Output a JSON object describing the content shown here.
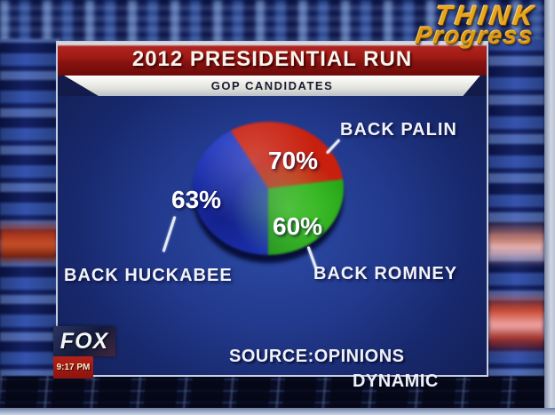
{
  "watermark": {
    "line1": "THINK",
    "line2": "Progress",
    "color": "#e8a51e"
  },
  "banner": {
    "title": "2012 PRESIDENTIAL RUN",
    "subtitle": "GOP CANDIDATES"
  },
  "chart_data": {
    "type": "pie",
    "title": "2012 PRESIDENTIAL RUN",
    "subtitle": "GOP CANDIDATES",
    "slices": [
      {
        "label": "BACK PALIN",
        "value_pct": 70,
        "display": "70%",
        "color": "#c81f0e",
        "position": "top"
      },
      {
        "label": "BACK ROMNEY",
        "value_pct": 60,
        "display": "60%",
        "color": "#28a818",
        "position": "bottom-right"
      },
      {
        "label": "BACK HUCKABEE",
        "value_pct": 63,
        "display": "63%",
        "color": "#1f36c0",
        "position": "left"
      }
    ],
    "source": "SOURCE:OPINIONS DYNAMIC",
    "legend_position": "callout-labels"
  },
  "source": {
    "line1": "SOURCE:OPINIONS",
    "line2": "DYNAMIC"
  },
  "station": {
    "name": "FOX",
    "time": "9:17 PM"
  }
}
